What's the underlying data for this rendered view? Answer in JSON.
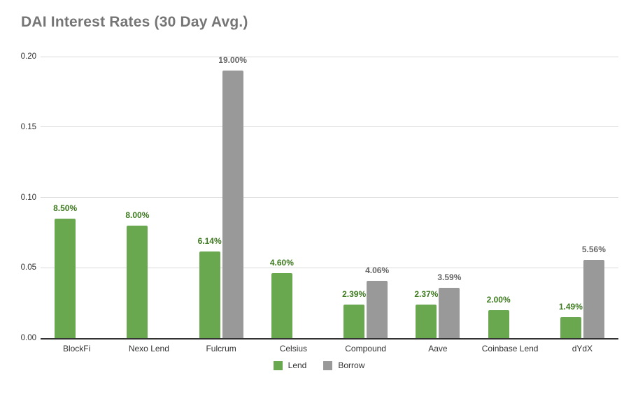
{
  "chart": {
    "title": "DAI Interest Rates (30 Day Avg.)"
  },
  "chart_data": {
    "type": "bar",
    "title": "DAI Interest Rates (30 Day Avg.)",
    "categories": [
      "BlockFi",
      "Nexo Lend",
      "Fulcrum",
      "Celsius",
      "Compound",
      "Aave",
      "Coinbase Lend",
      "dYdX"
    ],
    "series": [
      {
        "name": "Lend",
        "color": "#6aa84f",
        "label_color": "#3d7a1f",
        "values": [
          0.085,
          0.08,
          0.0614,
          0.046,
          0.0239,
          0.0237,
          0.02,
          0.0149
        ],
        "labels": [
          "8.50%",
          "8.00%",
          "6.14%",
          "4.60%",
          "2.39%",
          "2.37%",
          "2.00%",
          "1.49%"
        ]
      },
      {
        "name": "Borrow",
        "color": "#999999",
        "label_color": "#666666",
        "values": [
          null,
          null,
          0.19,
          null,
          0.0406,
          0.0359,
          null,
          0.0556
        ],
        "labels": [
          null,
          null,
          "19.00%",
          null,
          "4.06%",
          "3.59%",
          null,
          "5.56%"
        ]
      }
    ],
    "ylim": [
      0,
      0.2
    ],
    "yticks": [
      {
        "value": 0.0,
        "label": "0.00"
      },
      {
        "value": 0.05,
        "label": "0.05"
      },
      {
        "value": 0.1,
        "label": "0.10"
      },
      {
        "value": 0.15,
        "label": "0.15"
      },
      {
        "value": 0.2,
        "label": "0.20"
      }
    ],
    "grid": true,
    "legend_position": "bottom"
  },
  "colors": {
    "title": "#757575",
    "gridline": "#dadada",
    "axis_line": "#333333",
    "axis_text": "#333333"
  }
}
